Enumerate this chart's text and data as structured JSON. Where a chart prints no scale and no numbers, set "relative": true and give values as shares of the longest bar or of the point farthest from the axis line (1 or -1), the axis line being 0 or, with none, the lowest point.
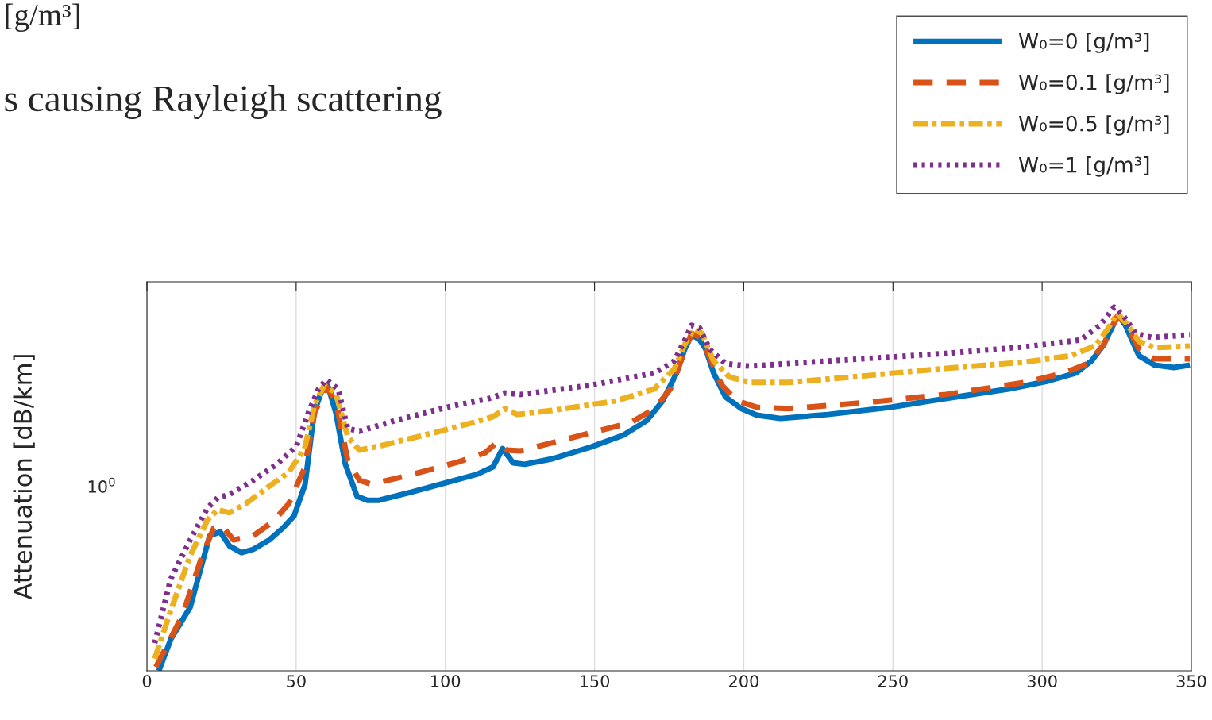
{
  "chart_data": {
    "type": "line",
    "relative": true,
    "ylabel": "Attenuation [dB/km]",
    "xlim": [
      0,
      350
    ],
    "xticks": [
      0,
      50,
      100,
      150,
      200,
      250,
      300,
      350
    ],
    "grid": "x",
    "legend": "top right",
    "annotations": [
      "[g/m³]",
      "s causing Rayleigh scattering",
      "10$^{0}$"
    ],
    "series": [
      {
        "name": "W₀=0 [g/m³]",
        "color": "#0072bd",
        "line_style": "solid",
        "x": [
          4,
          8,
          14.5,
          21,
          24.5,
          27.7,
          31.7,
          35.6,
          41,
          45.6,
          49.3,
          53,
          56,
          58.8,
          60.7,
          63.3,
          66.5,
          70.4,
          73.9,
          77.8,
          88.4,
          100.2,
          110.8,
          116,
          119.2,
          122.7,
          126.6,
          135.8,
          149,
          159.6,
          167.5,
          172.8,
          177.5,
          180.2,
          182.5,
          185.2,
          187.3,
          189.9,
          193.9,
          199.2,
          204.4,
          212.3,
          228.2,
          249.3,
          267.7,
          288.8,
          302,
          311.3,
          316.5,
          320.5,
          324.4,
          325.8,
          327.9,
          332.4,
          337.6,
          344.2,
          349.5
        ],
        "values": [
          0,
          0.087,
          0.175,
          0.371,
          0.382,
          0.343,
          0.325,
          0.334,
          0.36,
          0.393,
          0.426,
          0.513,
          0.71,
          0.775,
          0.782,
          0.71,
          0.568,
          0.48,
          0.469,
          0.469,
          0.491,
          0.517,
          0.541,
          0.561,
          0.611,
          0.572,
          0.568,
          0.583,
          0.616,
          0.648,
          0.688,
          0.742,
          0.819,
          0.884,
          0.924,
          0.911,
          0.884,
          0.819,
          0.753,
          0.721,
          0.703,
          0.694,
          0.705,
          0.725,
          0.749,
          0.775,
          0.797,
          0.819,
          0.852,
          0.895,
          0.961,
          0.976,
          0.95,
          0.867,
          0.841,
          0.834,
          0.841
        ]
      },
      {
        "name": "W₀=0.1 [g/m³]",
        "color": "#d95319",
        "line_style": "dashed",
        "x": [
          3,
          11.9,
          18.5,
          22.4,
          25,
          29,
          35.6,
          42.2,
          47.5,
          52.8,
          56.2,
          60.1,
          63.3,
          67.3,
          71.2,
          75.2,
          88.4,
          104.2,
          113.4,
          117.4,
          120.5,
          125.3,
          149,
          162.2,
          170.1,
          175.4,
          179.4,
          182.5,
          185.4,
          188.6,
          192.6,
          197.8,
          204.4,
          215,
          241.4,
          267.7,
          294.1,
          307.3,
          315.2,
          320.5,
          325.2,
          328.4,
          332.4,
          337.6,
          349.5
        ],
        "values": [
          0.01,
          0.153,
          0.317,
          0.393,
          0.4,
          0.36,
          0.371,
          0.41,
          0.459,
          0.557,
          0.71,
          0.782,
          0.742,
          0.579,
          0.524,
          0.513,
          0.539,
          0.574,
          0.6,
          0.629,
          0.607,
          0.605,
          0.655,
          0.683,
          0.721,
          0.775,
          0.862,
          0.928,
          0.917,
          0.862,
          0.786,
          0.742,
          0.725,
          0.721,
          0.738,
          0.76,
          0.793,
          0.819,
          0.845,
          0.895,
          0.976,
          0.95,
          0.886,
          0.858,
          0.858
        ]
      },
      {
        "name": "W₀=0.5 [g/m³]",
        "color": "#edb120",
        "line_style": "dashdot",
        "x": [
          2.6,
          7.9,
          14.5,
          20.3,
          23.7,
          27.7,
          33,
          40.9,
          47.5,
          52.8,
          56.2,
          59.4,
          63.3,
          67.3,
          71.2,
          77.8,
          96.3,
          109.5,
          116,
          120,
          124,
          135.8,
          157,
          170,
          176.7,
          180.7,
          183.3,
          186,
          189.9,
          195.2,
          201.8,
          215,
          241.4,
          267.7,
          294.1,
          309.9,
          317.9,
          321.9,
          325.2,
          328.4,
          332.4,
          337.6,
          349.5
        ],
        "values": [
          0.033,
          0.164,
          0.317,
          0.415,
          0.443,
          0.435,
          0.459,
          0.507,
          0.546,
          0.611,
          0.731,
          0.786,
          0.764,
          0.644,
          0.607,
          0.618,
          0.655,
          0.683,
          0.699,
          0.721,
          0.705,
          0.716,
          0.742,
          0.775,
          0.83,
          0.906,
          0.939,
          0.928,
          0.852,
          0.808,
          0.793,
          0.793,
          0.812,
          0.832,
          0.849,
          0.867,
          0.895,
          0.939,
          0.983,
          0.954,
          0.906,
          0.889,
          0.893
        ]
      },
      {
        "name": "W₀=1 [g/m³]",
        "color": "#7e2f8e",
        "line_style": "dotted",
        "x": [
          2.6,
          7.9,
          14.5,
          20.3,
          23.7,
          27.7,
          35.6,
          43.5,
          50.1,
          54.1,
          57.5,
          60.1,
          64.1,
          67.3,
          71.2,
          83.1,
          101.6,
          114.7,
          120,
          125.3,
          149,
          170.1,
          176.7,
          180.7,
          182.5,
          185.2,
          188.6,
          193.9,
          201.8,
          228.2,
          267.7,
          294.1,
          312.8,
          319.4,
          324.1,
          327.3,
          331.3,
          336.6,
          349.5
        ],
        "values": [
          0.076,
          0.251,
          0.36,
          0.448,
          0.476,
          0.485,
          0.524,
          0.568,
          0.618,
          0.71,
          0.775,
          0.801,
          0.775,
          0.666,
          0.659,
          0.688,
          0.727,
          0.749,
          0.764,
          0.76,
          0.786,
          0.819,
          0.852,
          0.917,
          0.95,
          0.943,
          0.884,
          0.845,
          0.838,
          0.852,
          0.873,
          0.891,
          0.91,
          0.95,
          1.0,
          0.976,
          0.928,
          0.917,
          0.924
        ]
      }
    ]
  }
}
